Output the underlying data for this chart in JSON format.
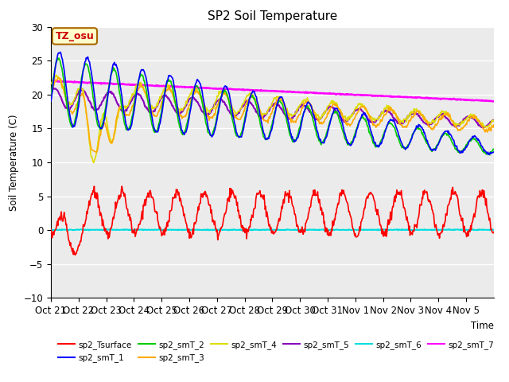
{
  "title": "SP2 Soil Temperature",
  "ylabel": "Soil Temperature (C)",
  "xlabel": "Time",
  "annotation": "TZ_osu",
  "ylim": [
    -10,
    30
  ],
  "background_color": "#ebebeb",
  "x_tick_labels": [
    "Oct 21",
    "Oct 22",
    "Oct 23",
    "Oct 24",
    "Oct 25",
    "Oct 26",
    "Oct 27",
    "Oct 28",
    "Oct 29",
    "Oct 30",
    "Oct 31",
    "Nov 1",
    "Nov 2",
    "Nov 3",
    "Nov 4",
    "Nov 5"
  ],
  "series_order": [
    "sp2_Tsurface",
    "sp2_smT_1",
    "sp2_smT_2",
    "sp2_smT_3",
    "sp2_smT_4",
    "sp2_smT_5",
    "sp2_smT_6",
    "sp2_smT_7"
  ],
  "series": {
    "sp2_Tsurface": {
      "color": "#ff0000",
      "lw": 1.2
    },
    "sp2_smT_1": {
      "color": "#0000ff",
      "lw": 1.2
    },
    "sp2_smT_2": {
      "color": "#00cc00",
      "lw": 1.2
    },
    "sp2_smT_3": {
      "color": "#ffaa00",
      "lw": 1.2
    },
    "sp2_smT_4": {
      "color": "#dddd00",
      "lw": 1.2
    },
    "sp2_smT_5": {
      "color": "#8800bb",
      "lw": 1.5
    },
    "sp2_smT_6": {
      "color": "#00dddd",
      "lw": 1.5
    },
    "sp2_smT_7": {
      "color": "#ff00ff",
      "lw": 1.8
    }
  },
  "legend_ncol1": 6,
  "legend_ncol2": 2
}
